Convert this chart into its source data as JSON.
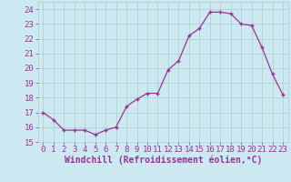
{
  "x": [
    0,
    1,
    2,
    3,
    4,
    5,
    6,
    7,
    8,
    9,
    10,
    11,
    12,
    13,
    14,
    15,
    16,
    17,
    18,
    19,
    20,
    21,
    22,
    23
  ],
  "y": [
    17.0,
    16.5,
    15.8,
    15.8,
    15.8,
    15.5,
    15.8,
    16.0,
    17.4,
    17.9,
    18.3,
    18.3,
    19.9,
    20.5,
    22.2,
    22.7,
    23.8,
    23.8,
    23.7,
    23.0,
    22.9,
    21.4,
    19.6,
    18.2
  ],
  "line_color": "#993399",
  "marker": "+",
  "bg_color": "#cce8f0",
  "grid_color": "#aacccc",
  "xlabel": "Windchill (Refroidissement éolien,°C)",
  "xlim": [
    -0.5,
    23.5
  ],
  "ylim": [
    15.0,
    24.5
  ],
  "yticks": [
    15,
    16,
    17,
    18,
    19,
    20,
    21,
    22,
    23,
    24
  ],
  "xticks": [
    0,
    1,
    2,
    3,
    4,
    5,
    6,
    7,
    8,
    9,
    10,
    11,
    12,
    13,
    14,
    15,
    16,
    17,
    18,
    19,
    20,
    21,
    22,
    23
  ],
  "font_color": "#993399",
  "tick_fontsize": 6.5,
  "xlabel_fontsize": 7.0
}
